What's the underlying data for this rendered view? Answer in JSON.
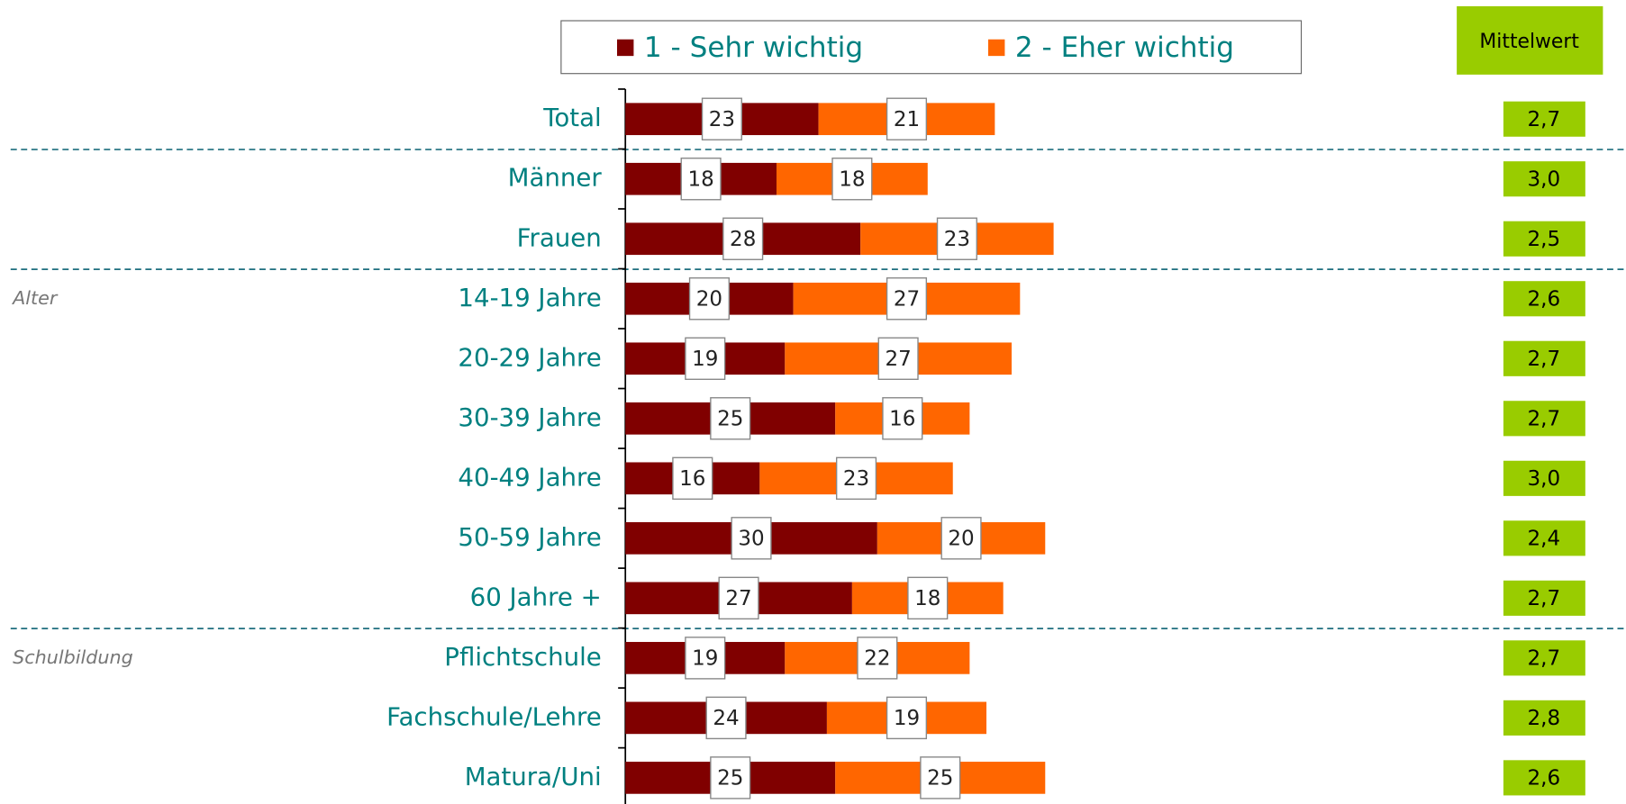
{
  "chart_data": {
    "type": "stacked-barh",
    "categories": [
      "Total",
      "Männer",
      "Frauen",
      "14-19 Jahre",
      "20-29 Jahre",
      "30-39 Jahre",
      "40-49 Jahre",
      "50-59 Jahre",
      "60 Jahre +",
      "Pflichtschule",
      "Fachschule/Lehre",
      "Matura/Uni"
    ],
    "group_labels": [
      null,
      null,
      null,
      "Alter",
      null,
      null,
      null,
      null,
      null,
      "Schulbildung",
      null,
      null
    ],
    "series": [
      {
        "name": "1 - Sehr wichtig",
        "color": "#800000",
        "values": [
          23,
          18,
          28,
          20,
          19,
          25,
          16,
          30,
          27,
          19,
          24,
          25
        ]
      },
      {
        "name": "2 - Eher wichtig",
        "color": "#ff6600",
        "values": [
          21,
          18,
          23,
          27,
          27,
          16,
          23,
          20,
          18,
          22,
          19,
          25
        ]
      }
    ],
    "xlim": [
      0,
      100
    ],
    "mean": {
      "title": "Mittelwert",
      "color": "#99cc00",
      "values": [
        2.7,
        3.0,
        2.5,
        2.6,
        2.7,
        2.7,
        3.0,
        2.4,
        2.7,
        2.7,
        2.8,
        2.6
      ],
      "value_labels": [
        "2,7",
        "3,0",
        "2,5",
        "2,6",
        "2,7",
        "2,7",
        "3,0",
        "2,4",
        "2,7",
        "2,7",
        "2,8",
        "2,6"
      ]
    }
  }
}
